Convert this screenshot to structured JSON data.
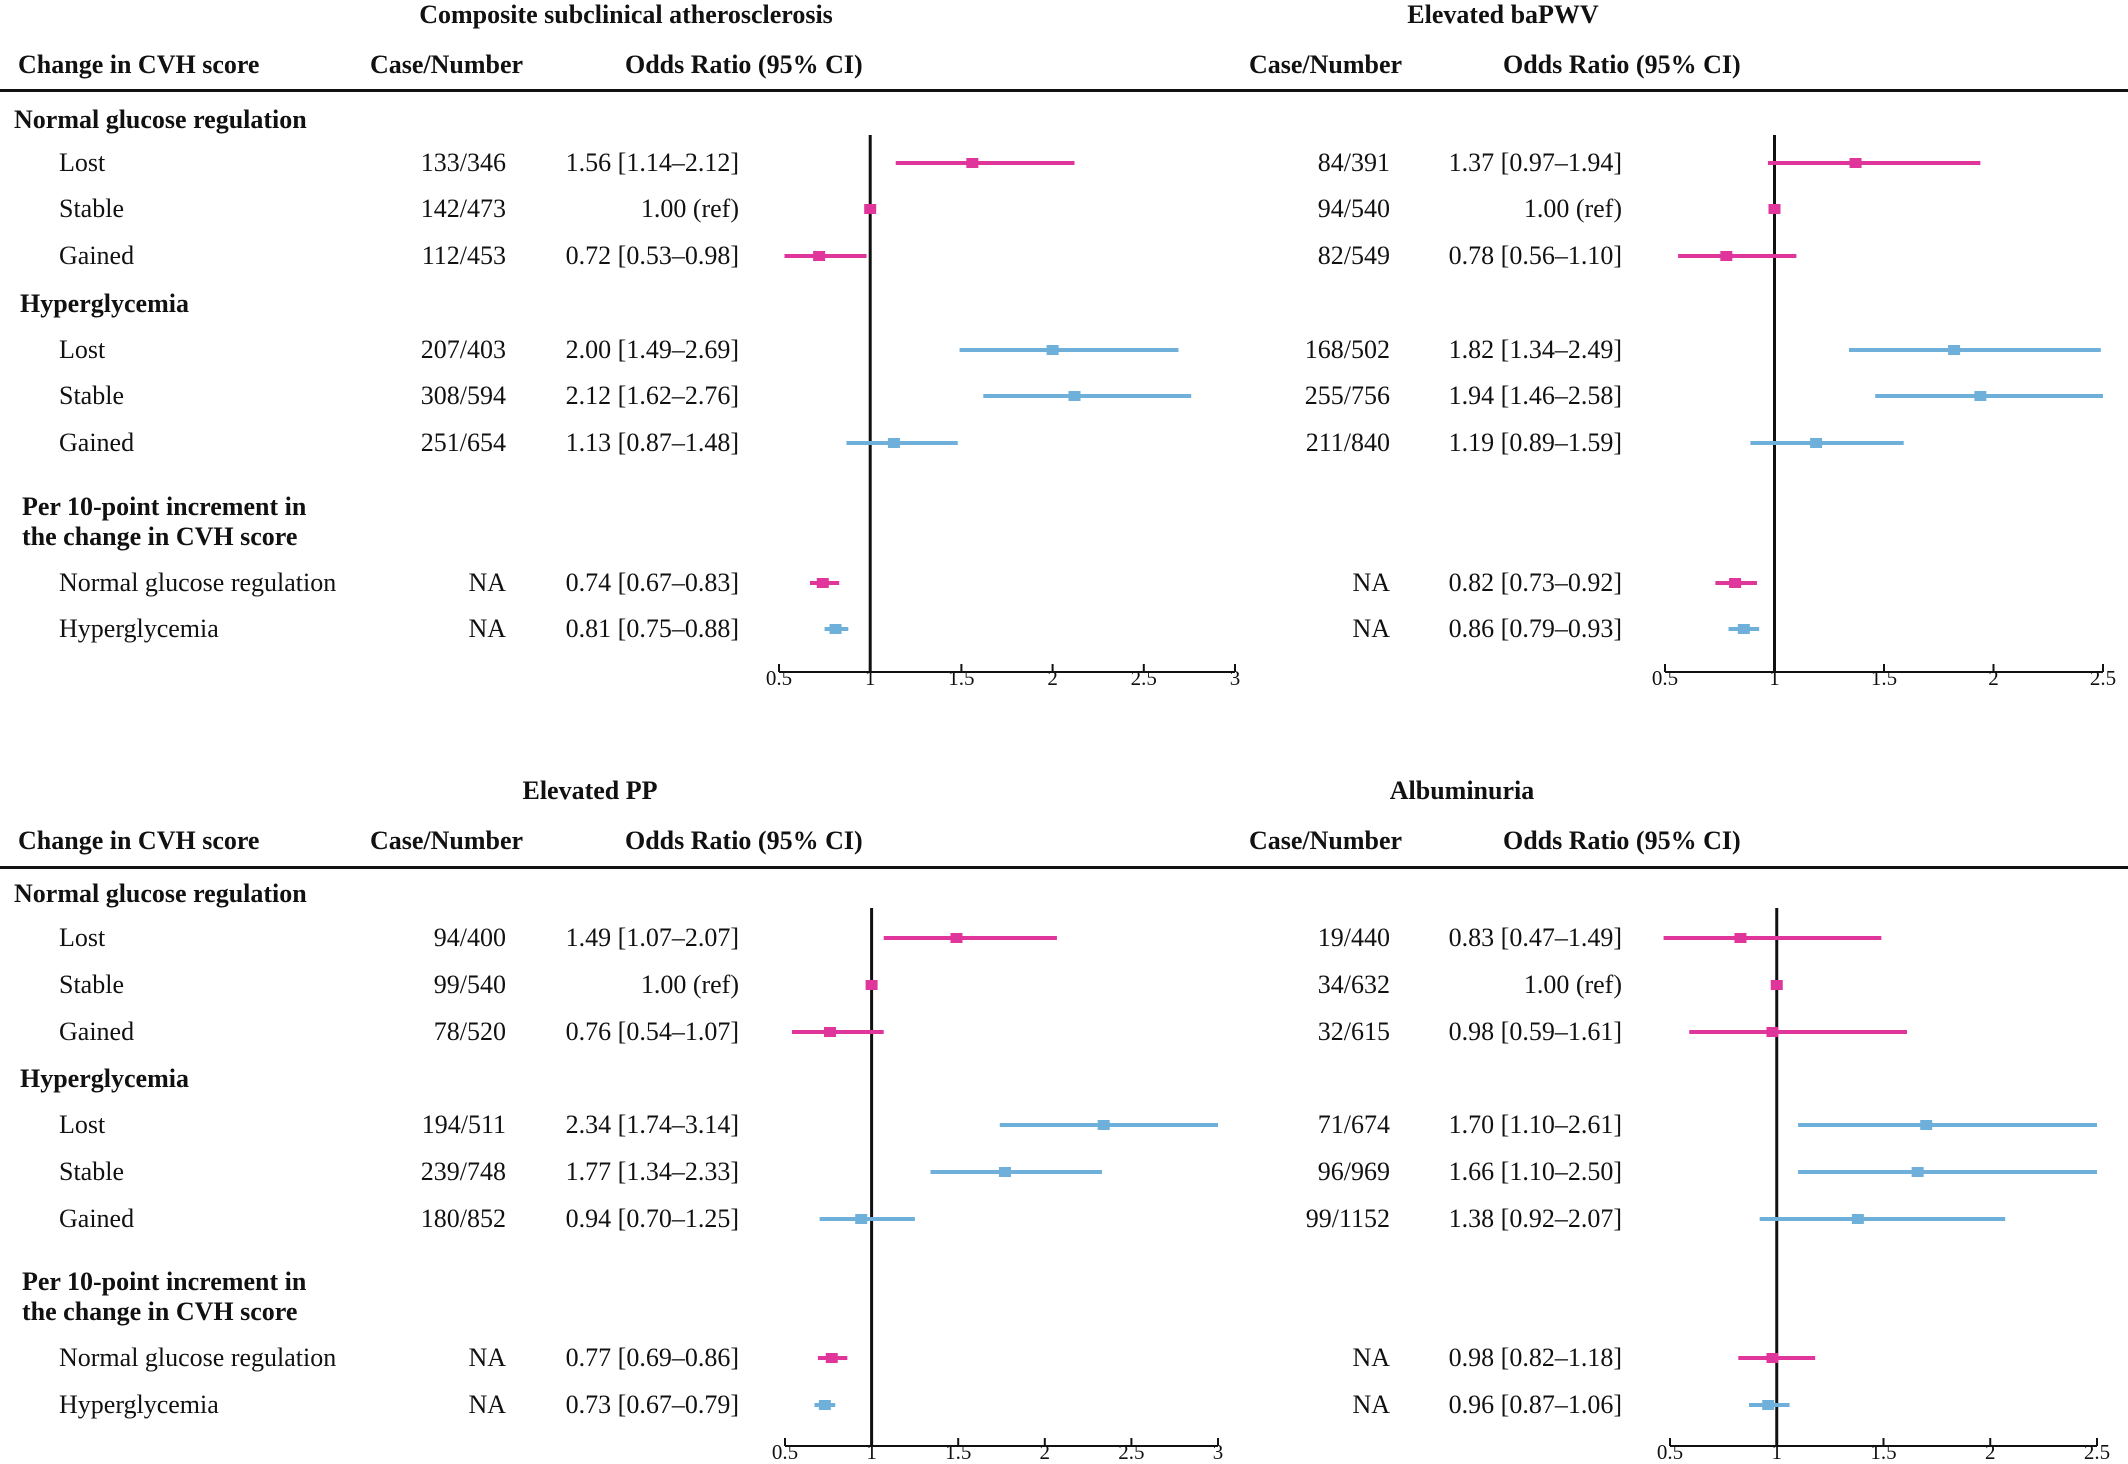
{
  "colors": {
    "normal": "#e0359a",
    "hyper": "#6fb0da",
    "axis": "#111111"
  },
  "headers": {
    "change": "Change in CVH score",
    "case": "Case/Number",
    "or": "Odds Ratio (95% CI)"
  },
  "groups": {
    "normal": "Normal glucose regulation",
    "hyper": "Hyperglycemia",
    "per10_line1": "Per 10-point increment in",
    "per10_line2": "the change in CVH score"
  },
  "row_labels": [
    "Lost",
    "Stable",
    "Gained",
    "Lost",
    "Stable",
    "Gained",
    "Normal glucose regulation",
    "Hyperglycemia"
  ],
  "chart_data": [
    {
      "type": "forest",
      "title": "Composite subclinical atherosclerosis",
      "xticks": [
        "0.5",
        "1",
        "1.5",
        "2",
        "2.5",
        "3"
      ],
      "xlim": [
        0.5,
        3
      ],
      "reference": 1,
      "rows": [
        {
          "group": "Normal glucose regulation",
          "label": "Lost",
          "cases": "133/346",
          "or_text": "1.56 [1.14–2.12]",
          "or": 1.56,
          "lo": 1.14,
          "hi": 2.12
        },
        {
          "group": "Normal glucose regulation",
          "label": "Stable",
          "cases": "142/473",
          "or_text": "1.00 (ref)",
          "or": 1.0,
          "lo": 1.0,
          "hi": 1.0
        },
        {
          "group": "Normal glucose regulation",
          "label": "Gained",
          "cases": "112/453",
          "or_text": "0.72 [0.53–0.98]",
          "or": 0.72,
          "lo": 0.53,
          "hi": 0.98
        },
        {
          "group": "Hyperglycemia",
          "label": "Lost",
          "cases": "207/403",
          "or_text": "2.00 [1.49–2.69]",
          "or": 2.0,
          "lo": 1.49,
          "hi": 2.69
        },
        {
          "group": "Hyperglycemia",
          "label": "Stable",
          "cases": "308/594",
          "or_text": "2.12 [1.62–2.76]",
          "or": 2.12,
          "lo": 1.62,
          "hi": 2.76
        },
        {
          "group": "Hyperglycemia",
          "label": "Gained",
          "cases": "251/654",
          "or_text": "1.13 [0.87–1.48]",
          "or": 1.13,
          "lo": 0.87,
          "hi": 1.48
        },
        {
          "group": "Per 10-point increment",
          "label": "Normal glucose regulation",
          "cases": "NA",
          "or_text": "0.74 [0.67–0.83]",
          "or": 0.74,
          "lo": 0.67,
          "hi": 0.83
        },
        {
          "group": "Per 10-point increment",
          "label": "Hyperglycemia",
          "cases": "NA",
          "or_text": "0.81 [0.75–0.88]",
          "or": 0.81,
          "lo": 0.75,
          "hi": 0.88
        }
      ]
    },
    {
      "type": "forest",
      "title": "Elevated baPWV",
      "xticks": [
        "0.5",
        "1",
        "1.5",
        "2",
        "2.5"
      ],
      "xlim": [
        0.5,
        2.5
      ],
      "reference": 1,
      "rows": [
        {
          "group": "Normal glucose regulation",
          "label": "Lost",
          "cases": "84/391",
          "or_text": "1.37 [0.97–1.94]",
          "or": 1.37,
          "lo": 0.97,
          "hi": 1.94
        },
        {
          "group": "Normal glucose regulation",
          "label": "Stable",
          "cases": "94/540",
          "or_text": "1.00 (ref)",
          "or": 1.0,
          "lo": 1.0,
          "hi": 1.0
        },
        {
          "group": "Normal glucose regulation",
          "label": "Gained",
          "cases": "82/549",
          "or_text": "0.78 [0.56–1.10]",
          "or": 0.78,
          "lo": 0.56,
          "hi": 1.1
        },
        {
          "group": "Hyperglycemia",
          "label": "Lost",
          "cases": "168/502",
          "or_text": "1.82 [1.34–2.49]",
          "or": 1.82,
          "lo": 1.34,
          "hi": 2.49
        },
        {
          "group": "Hyperglycemia",
          "label": "Stable",
          "cases": "255/756",
          "or_text": "1.94 [1.46–2.58]",
          "or": 1.94,
          "lo": 1.46,
          "hi": 2.58
        },
        {
          "group": "Hyperglycemia",
          "label": "Gained",
          "cases": "211/840",
          "or_text": "1.19 [0.89–1.59]",
          "or": 1.19,
          "lo": 0.89,
          "hi": 1.59
        },
        {
          "group": "Per 10-point increment",
          "label": "Normal glucose regulation",
          "cases": "NA",
          "or_text": "0.82 [0.73–0.92]",
          "or": 0.82,
          "lo": 0.73,
          "hi": 0.92
        },
        {
          "group": "Per 10-point increment",
          "label": "Hyperglycemia",
          "cases": "NA",
          "or_text": "0.86 [0.79–0.93]",
          "or": 0.86,
          "lo": 0.79,
          "hi": 0.93
        }
      ]
    },
    {
      "type": "forest",
      "title": "Elevated PP",
      "xticks": [
        "0.5",
        "1",
        "1.5",
        "2",
        "2.5",
        "3"
      ],
      "xlim": [
        0.5,
        3
      ],
      "reference": 1,
      "rows": [
        {
          "group": "Normal glucose regulation",
          "label": "Lost",
          "cases": "94/400",
          "or_text": "1.49 [1.07–2.07]",
          "or": 1.49,
          "lo": 1.07,
          "hi": 2.07
        },
        {
          "group": "Normal glucose regulation",
          "label": "Stable",
          "cases": "99/540",
          "or_text": "1.00 (ref)",
          "or": 1.0,
          "lo": 1.0,
          "hi": 1.0
        },
        {
          "group": "Normal glucose regulation",
          "label": "Gained",
          "cases": "78/520",
          "or_text": "0.76 [0.54–1.07]",
          "or": 0.76,
          "lo": 0.54,
          "hi": 1.07
        },
        {
          "group": "Hyperglycemia",
          "label": "Lost",
          "cases": "194/511",
          "or_text": "2.34 [1.74–3.14]",
          "or": 2.34,
          "lo": 1.74,
          "hi": 3.14
        },
        {
          "group": "Hyperglycemia",
          "label": "Stable",
          "cases": "239/748",
          "or_text": "1.77 [1.34–2.33]",
          "or": 1.77,
          "lo": 1.34,
          "hi": 2.33
        },
        {
          "group": "Hyperglycemia",
          "label": "Gained",
          "cases": "180/852",
          "or_text": "0.94 [0.70–1.25]",
          "or": 0.94,
          "lo": 0.7,
          "hi": 1.25
        },
        {
          "group": "Per 10-point increment",
          "label": "Normal glucose regulation",
          "cases": "NA",
          "or_text": "0.77 [0.69–0.86]",
          "or": 0.77,
          "lo": 0.69,
          "hi": 0.86
        },
        {
          "group": "Per 10-point increment",
          "label": "Hyperglycemia",
          "cases": "NA",
          "or_text": "0.73 [0.67–0.79]",
          "or": 0.73,
          "lo": 0.67,
          "hi": 0.79
        }
      ]
    },
    {
      "type": "forest",
      "title": "Albuminuria",
      "xticks": [
        "0.5",
        "1",
        "1.5",
        "2",
        "2.5"
      ],
      "xlim": [
        0.5,
        2.5
      ],
      "reference": 1,
      "rows": [
        {
          "group": "Normal glucose regulation",
          "label": "Lost",
          "cases": "19/440",
          "or_text": "0.83 [0.47–1.49]",
          "or": 0.83,
          "lo": 0.47,
          "hi": 1.49
        },
        {
          "group": "Normal glucose regulation",
          "label": "Stable",
          "cases": "34/632",
          "or_text": "1.00 (ref)",
          "or": 1.0,
          "lo": 1.0,
          "hi": 1.0
        },
        {
          "group": "Normal glucose regulation",
          "label": "Gained",
          "cases": "32/615",
          "or_text": "0.98 [0.59–1.61]",
          "or": 0.98,
          "lo": 0.59,
          "hi": 1.61
        },
        {
          "group": "Hyperglycemia",
          "label": "Lost",
          "cases": "71/674",
          "or_text": "1.70 [1.10–2.61]",
          "or": 1.7,
          "lo": 1.1,
          "hi": 2.61
        },
        {
          "group": "Hyperglycemia",
          "label": "Stable",
          "cases": "96/969",
          "or_text": "1.66 [1.10–2.50]",
          "or": 1.66,
          "lo": 1.1,
          "hi": 2.5
        },
        {
          "group": "Hyperglycemia",
          "label": "Gained",
          "cases": "99/1152",
          "or_text": "1.38 [0.92–2.07]",
          "or": 1.38,
          "lo": 0.92,
          "hi": 2.07
        },
        {
          "group": "Per 10-point increment",
          "label": "Normal glucose regulation",
          "cases": "NA",
          "or_text": "0.98 [0.82–1.18]",
          "or": 0.98,
          "lo": 0.82,
          "hi": 1.18
        },
        {
          "group": "Per 10-point increment",
          "label": "Hyperglycemia",
          "cases": "NA",
          "or_text": "0.96 [0.87–1.06]",
          "or": 0.96,
          "lo": 0.87,
          "hi": 1.06
        }
      ]
    }
  ]
}
